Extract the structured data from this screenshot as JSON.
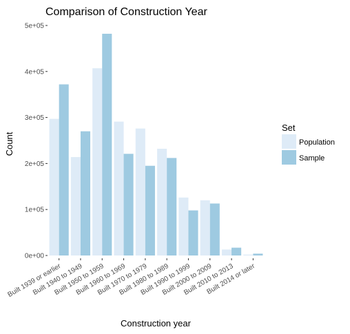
{
  "chart_data": {
    "type": "bar",
    "title": "Comparison of Construction Year",
    "xlabel": "Construction year",
    "ylabel": "Count",
    "categories": [
      "Built 1939 or earlier",
      "Built 1940 to 1949",
      "Built 1950 to 1959",
      "Built 1960 to 1969",
      "Built 1970 to 1979",
      "Built 1980 to 1989",
      "Built 1990 to 1999",
      "Built 2000 to 2009",
      "Built 2010 to 2013",
      "Built 2014 or later"
    ],
    "series": [
      {
        "name": "Population",
        "color": "#deebf7",
        "values": [
          297000,
          214000,
          407000,
          291000,
          276000,
          232000,
          126000,
          120000,
          13000,
          2000
        ]
      },
      {
        "name": "Sample",
        "color": "#9ecae1",
        "values": [
          372000,
          270000,
          482000,
          221000,
          195000,
          212000,
          98000,
          113000,
          17000,
          4000
        ]
      }
    ],
    "ylim": [
      0,
      500000
    ],
    "yticks": [
      0,
      100000,
      200000,
      300000,
      400000,
      500000
    ],
    "ytick_labels": [
      "0e+00",
      "1e+05",
      "2e+05",
      "3e+05",
      "4e+05",
      "5e+05"
    ],
    "legend": {
      "title": "Set",
      "position": "right"
    },
    "grid": false
  }
}
